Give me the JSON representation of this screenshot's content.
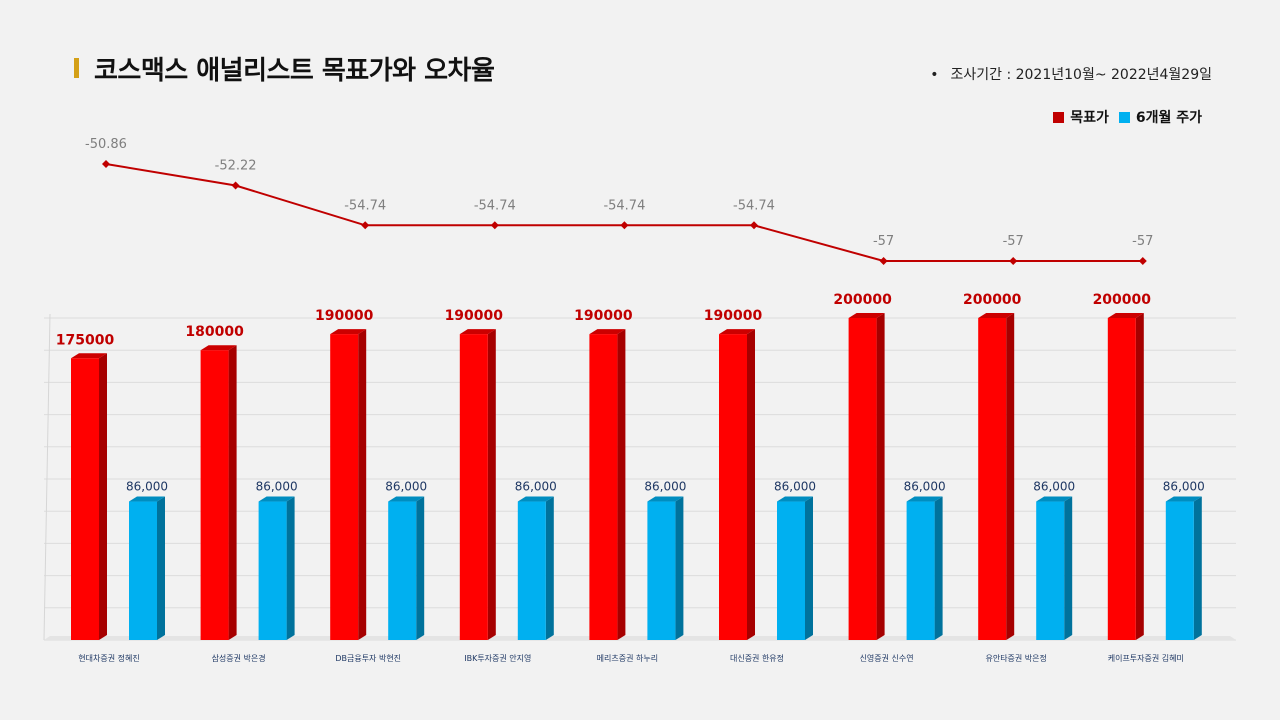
{
  "title": "코스맥스 애널리스트 목표가와 오차율",
  "period": {
    "bullet": "•",
    "text": "조사기간 : 2021년10월~ 2022년4월29일"
  },
  "legend": [
    {
      "label": "목표가",
      "color": "#c00000"
    },
    {
      "label": "6개월 주가",
      "color": "#00b0f0"
    }
  ],
  "chart_data": [
    {
      "type": "line",
      "categories": [
        "현대차증권 정혜진",
        "삼성증권 박은경",
        "DB금융투자 박현진",
        "IBK투자증권 안지영",
        "메리츠증권 하누리",
        "대신증권 한유정",
        "신영증권 신수연",
        "유안타증권 박은정",
        "케이프투자증권 김혜미"
      ],
      "series": [
        {
          "values": [
            -50.86,
            -52.22,
            -54.74,
            -54.74,
            -54.74,
            -54.74,
            -57,
            -57,
            -57
          ],
          "labels": [
            "-50.86",
            "-52.22",
            "-54.74",
            "-54.74",
            "-54.74",
            "-54.74",
            "-57",
            "-57",
            "-57"
          ],
          "color": "#c00000"
        }
      ]
    },
    {
      "type": "bar",
      "categories": [
        "현대차증권 정혜진",
        "삼성증권 박은경",
        "DB금융투자 박현진",
        "IBK투자증권 안지영",
        "메리츠증권 하누리",
        "대신증권 한유정",
        "신영증권 신수연",
        "유안타증권 박은정",
        "케이프투자증권 김혜미"
      ],
      "series": [
        {
          "name": "목표가",
          "values": [
            175000,
            180000,
            190000,
            190000,
            190000,
            190000,
            200000,
            200000,
            200000
          ],
          "labels": [
            "175000",
            "180000",
            "190000",
            "190000",
            "190000",
            "190000",
            "200000",
            "200000",
            "200000"
          ],
          "color": "#ff0000"
        },
        {
          "name": "6개월 주가",
          "values": [
            86000,
            86000,
            86000,
            86000,
            86000,
            86000,
            86000,
            86000,
            86000
          ],
          "labels": [
            "86,000",
            "86,000",
            "86,000",
            "86,000",
            "86,000",
            "86,000",
            "86,000",
            "86,000",
            "86,000"
          ],
          "color": "#00b0f0"
        }
      ],
      "ylim": [
        0,
        200000
      ],
      "grid": true
    }
  ]
}
